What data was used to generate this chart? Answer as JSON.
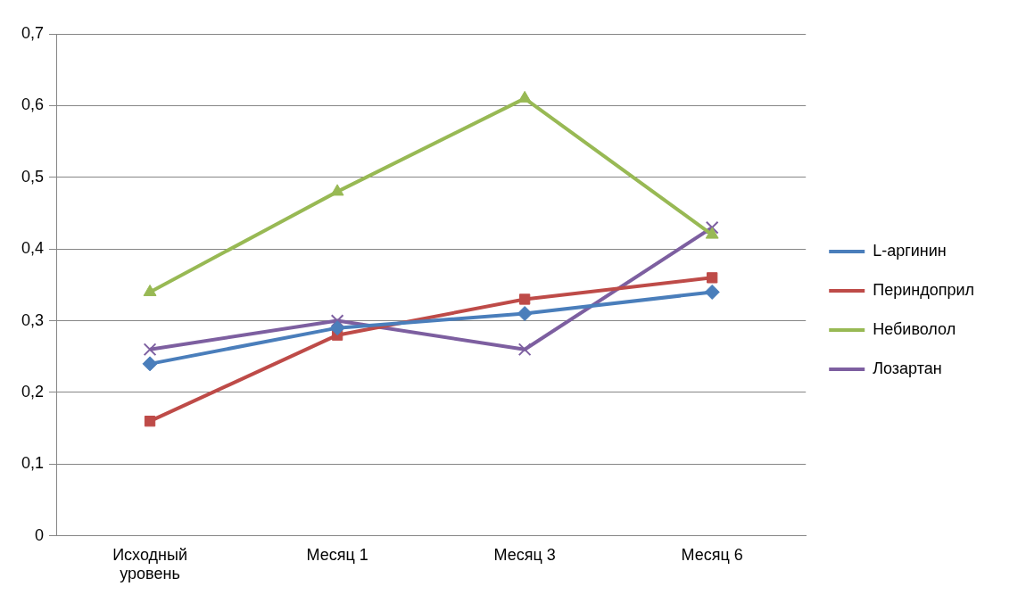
{
  "chart_data": {
    "type": "line",
    "categories": [
      "Исходный уровень",
      "Месяц 1",
      "Месяц 3",
      "Месяц 6"
    ],
    "series": [
      {
        "name": "L-аргинин",
        "color": "#4a7ebb",
        "marker": "diamond",
        "values": [
          0.24,
          0.29,
          0.31,
          0.34
        ]
      },
      {
        "name": "Периндоприл",
        "color": "#be4b48",
        "marker": "square",
        "values": [
          0.16,
          0.28,
          0.33,
          0.36
        ]
      },
      {
        "name": "Небиволол",
        "color": "#98b954",
        "marker": "triangle",
        "values": [
          0.34,
          0.48,
          0.61,
          0.42
        ]
      },
      {
        "name": "Лозартан",
        "color": "#7d5fa0",
        "marker": "cross",
        "values": [
          0.26,
          0.3,
          0.26,
          0.43
        ]
      }
    ],
    "ylim": [
      0,
      0.7
    ],
    "yticks": [
      0,
      {
        "value": 0.1,
        "label": "0,1"
      },
      {
        "value": 0.2,
        "label": "0,2"
      },
      {
        "value": 0.3,
        "label": "0,3"
      },
      {
        "value": 0.4,
        "label": "0,4"
      },
      {
        "value": 0.5,
        "label": "0,5"
      },
      {
        "value": 0.6,
        "label": "0,6"
      },
      {
        "value": 0.7,
        "label": "0,7"
      }
    ],
    "grid": "y",
    "legend": "right",
    "line_style": "solid"
  }
}
